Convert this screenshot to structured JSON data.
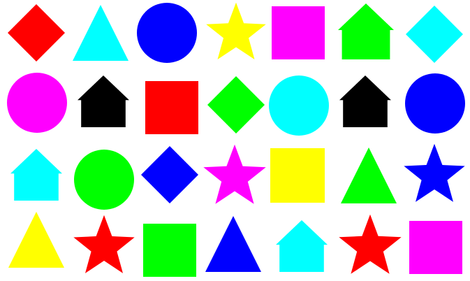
{
  "colors": {
    "red": "#ff0000",
    "cyan": "#00ffff",
    "blue": "#0000ff",
    "yellow": "#ffff00",
    "magenta": "#ff00ff",
    "green": "#00ff00",
    "black": "#000000"
  },
  "rows": [
    [
      {
        "shape": "diamond",
        "color": "red"
      },
      {
        "shape": "triangle",
        "color": "cyan"
      },
      {
        "shape": "circle",
        "color": "blue"
      },
      {
        "shape": "star",
        "color": "yellow"
      },
      {
        "shape": "square",
        "color": "magenta"
      },
      {
        "shape": "house",
        "color": "green"
      },
      {
        "shape": "diamond",
        "color": "cyan"
      }
    ],
    [
      {
        "shape": "circle",
        "color": "magenta"
      },
      {
        "shape": "house",
        "color": "black"
      },
      {
        "shape": "square",
        "color": "red"
      },
      {
        "shape": "diamond",
        "color": "green"
      },
      {
        "shape": "circle",
        "color": "cyan"
      },
      {
        "shape": "house",
        "color": "black"
      },
      {
        "shape": "circle",
        "color": "blue"
      }
    ],
    [
      {
        "shape": "house",
        "color": "cyan"
      },
      {
        "shape": "circle",
        "color": "green"
      },
      {
        "shape": "diamond",
        "color": "blue"
      },
      {
        "shape": "star",
        "color": "magenta"
      },
      {
        "shape": "square",
        "color": "yellow"
      },
      {
        "shape": "triangle",
        "color": "green"
      },
      {
        "shape": "star",
        "color": "blue"
      }
    ],
    [
      {
        "shape": "triangle",
        "color": "yellow"
      },
      {
        "shape": "star",
        "color": "red"
      },
      {
        "shape": "square",
        "color": "green"
      },
      {
        "shape": "triangle",
        "color": "blue"
      },
      {
        "shape": "house",
        "color": "cyan"
      },
      {
        "shape": "star",
        "color": "red"
      },
      {
        "shape": "square",
        "color": "magenta"
      }
    ]
  ]
}
